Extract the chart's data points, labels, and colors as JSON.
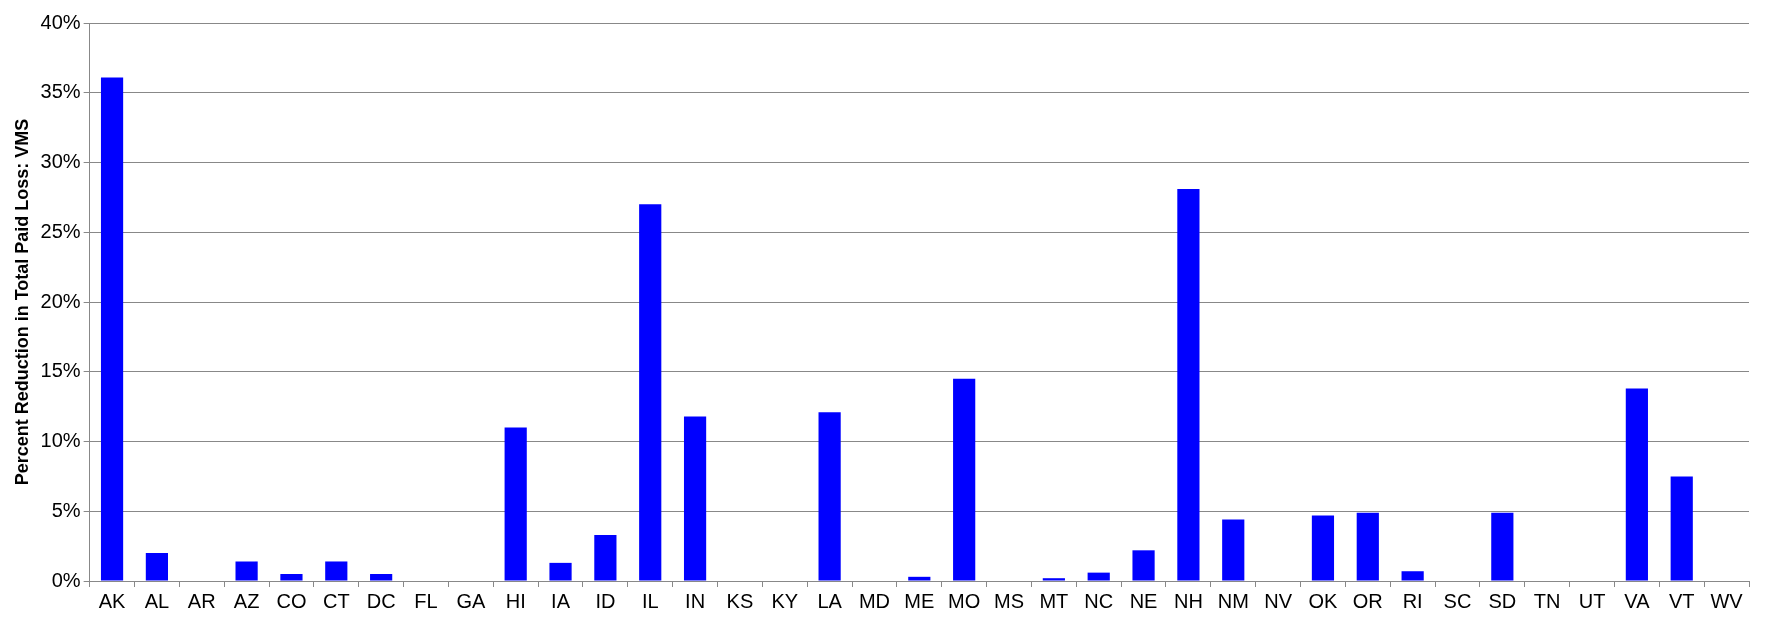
{
  "chart_data": {
    "type": "bar",
    "ylabel": "Percent Reduction in Total Paid Loss: VMS",
    "categories": [
      "AK",
      "AL",
      "AR",
      "AZ",
      "CO",
      "CT",
      "DC",
      "FL",
      "GA",
      "HI",
      "IA",
      "ID",
      "IL",
      "IN",
      "KS",
      "KY",
      "LA",
      "MD",
      "ME",
      "MO",
      "MS",
      "MT",
      "NC",
      "NE",
      "NH",
      "NM",
      "NV",
      "OK",
      "OR",
      "RI",
      "SC",
      "SD",
      "TN",
      "UT",
      "VA",
      "VT",
      "WV"
    ],
    "values": [
      36.1,
      2.0,
      0,
      1.4,
      0.5,
      1.4,
      0.5,
      0,
      0,
      11.0,
      1.3,
      3.3,
      27.0,
      11.8,
      0,
      0,
      12.1,
      0,
      0.3,
      14.5,
      0,
      0.2,
      0.6,
      2.2,
      28.1,
      4.4,
      0,
      4.7,
      4.9,
      0.7,
      0,
      4.9,
      0,
      0,
      13.8,
      7.5,
      0
    ],
    "color": "#0000ff",
    "ylim": [
      0,
      40
    ],
    "yticks": [
      {
        "value": 0,
        "label": "0%"
      },
      {
        "value": 5,
        "label": "5%"
      },
      {
        "value": 10,
        "label": "10%"
      },
      {
        "value": 15,
        "label": "15%"
      },
      {
        "value": 20,
        "label": "20%"
      },
      {
        "value": 25,
        "label": "25%"
      },
      {
        "value": 30,
        "label": "30%"
      },
      {
        "value": 35,
        "label": "35%"
      },
      {
        "value": 40,
        "label": "40%"
      }
    ],
    "grid": "y",
    "legend": false
  }
}
